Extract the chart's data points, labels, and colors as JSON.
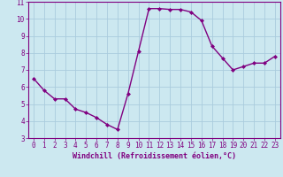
{
  "x": [
    0,
    1,
    2,
    3,
    4,
    5,
    6,
    7,
    8,
    9,
    10,
    11,
    12,
    13,
    14,
    15,
    16,
    17,
    18,
    19,
    20,
    21,
    22,
    23
  ],
  "y": [
    6.5,
    5.8,
    5.3,
    5.3,
    4.7,
    4.5,
    4.2,
    3.8,
    3.5,
    5.6,
    8.1,
    10.6,
    10.6,
    10.55,
    10.55,
    10.4,
    9.9,
    8.4,
    7.7,
    7.0,
    7.2,
    7.4,
    7.4,
    7.8
  ],
  "line_color": "#800080",
  "marker": "D",
  "marker_size": 2.0,
  "bg_color": "#cce8f0",
  "grid_color": "#aaccdd",
  "xlabel": "Windchill (Refroidissement éolien,°C)",
  "xlim_min": -0.5,
  "xlim_max": 23.5,
  "ylim_min": 3,
  "ylim_max": 11,
  "xticks": [
    0,
    1,
    2,
    3,
    4,
    5,
    6,
    7,
    8,
    9,
    10,
    11,
    12,
    13,
    14,
    15,
    16,
    17,
    18,
    19,
    20,
    21,
    22,
    23
  ],
  "yticks": [
    3,
    4,
    5,
    6,
    7,
    8,
    9,
    10,
    11
  ],
  "tick_color": "#800080",
  "label_color": "#800080",
  "spine_color": "#800080",
  "tick_font_size": 5.5,
  "xlabel_font_size": 6.0,
  "line_width": 1.0
}
